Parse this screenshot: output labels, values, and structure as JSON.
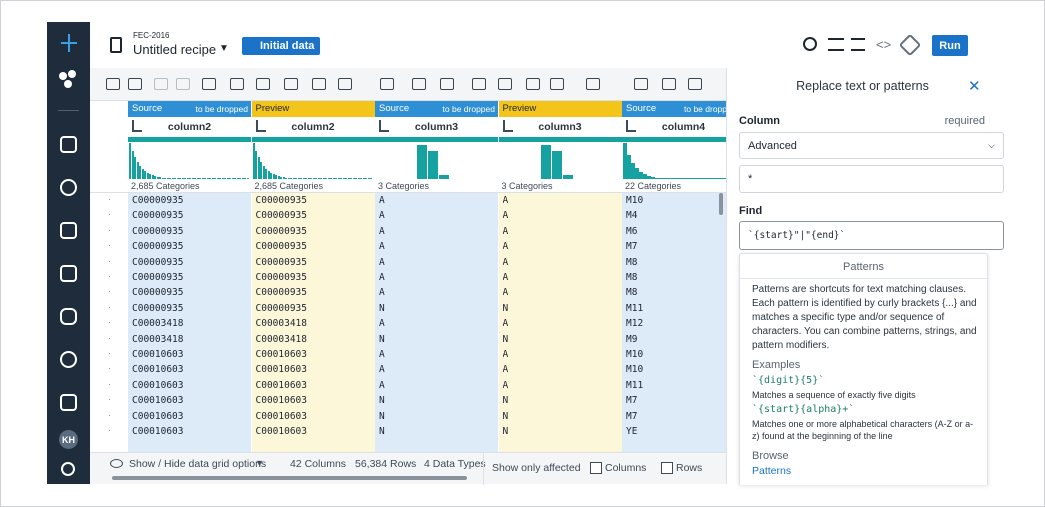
{
  "header": {
    "project": "FEC-2016",
    "recipe": "Untitled recipe",
    "dataset": "Initial data",
    "run": "Run"
  },
  "sidebar": {
    "avatar": "KH"
  },
  "grid": {
    "columns": [
      {
        "kind": "Source",
        "note": "to be dropped",
        "name": "column2",
        "categories": "2,685 Categories"
      },
      {
        "kind": "Preview",
        "name": "column2",
        "categories": "2,685 Categories"
      },
      {
        "kind": "Source",
        "note": "to be dropped",
        "name": "column3",
        "categories": "3 Categories"
      },
      {
        "kind": "Preview",
        "name": "column3",
        "categories": "3 Categories"
      },
      {
        "kind": "Source",
        "note": "to be dropped",
        "name": "column4",
        "categories": "22 Categories"
      }
    ],
    "rows": [
      [
        "C00000935",
        "C00000935",
        "A",
        "A",
        "M10"
      ],
      [
        "C00000935",
        "C00000935",
        "A",
        "A",
        "M4"
      ],
      [
        "C00000935",
        "C00000935",
        "A",
        "A",
        "M6"
      ],
      [
        "C00000935",
        "C00000935",
        "A",
        "A",
        "M7"
      ],
      [
        "C00000935",
        "C00000935",
        "A",
        "A",
        "M8"
      ],
      [
        "C00000935",
        "C00000935",
        "A",
        "A",
        "M8"
      ],
      [
        "C00000935",
        "C00000935",
        "A",
        "A",
        "M8"
      ],
      [
        "C00000935",
        "C00000935",
        "N",
        "N",
        "M11"
      ],
      [
        "C00003418",
        "C00003418",
        "A",
        "A",
        "M12"
      ],
      [
        "C00003418",
        "C00003418",
        "N",
        "N",
        "M9"
      ],
      [
        "C00010603",
        "C00010603",
        "A",
        "A",
        "M10"
      ],
      [
        "C00010603",
        "C00010603",
        "A",
        "A",
        "M10"
      ],
      [
        "C00010603",
        "C00010603",
        "A",
        "A",
        "M11"
      ],
      [
        "C00010603",
        "C00010603",
        "N",
        "N",
        "M7"
      ],
      [
        "C00010603",
        "C00010603",
        "N",
        "N",
        "M7"
      ],
      [
        "C00010603",
        "C00010603",
        "N",
        "N",
        "YE"
      ]
    ]
  },
  "footer": {
    "toggle": "Show / Hide data grid options",
    "columns": "42 Columns",
    "rows": "56,384 Rows",
    "types": "4 Data Types",
    "affected": "Show only affected",
    "check_columns": "Columns",
    "check_rows": "Rows"
  },
  "panel": {
    "title": "Replace text or patterns",
    "column_label": "Column",
    "required": "required",
    "mode": "Advanced",
    "column_value": "*",
    "find_label": "Find",
    "find_value": "`{start}\"|\"{end}`",
    "help": {
      "title": "Patterns",
      "text": "Patterns are shortcuts for text matching clauses. Each pattern is identified by curly brackets {...} and matches a specific type and/or sequence of characters. You can combine patterns, strings, and pattern modifiers.",
      "examples_title": "Examples",
      "examples": [
        {
          "code": "`{digit}{5}`",
          "desc": "Matches a sequence of exactly five digits"
        },
        {
          "code": "`{start}{alpha}+`",
          "desc": "Matches one or more alphabetical characters (A-Z or a-z) found at the beginning of the line"
        }
      ],
      "browse_title": "Browse",
      "browse_link": "Patterns"
    }
  }
}
